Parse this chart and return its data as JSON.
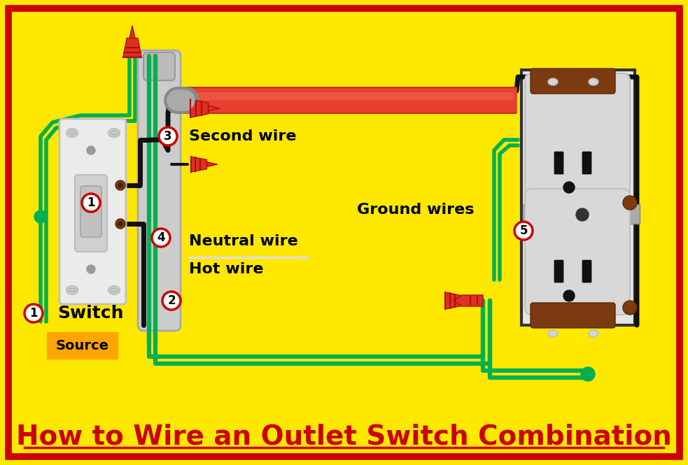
{
  "bg_color": "#FFE800",
  "border_color": "#CC0000",
  "title": "How to Wire an Outlet Switch Combination",
  "title_color": "#CC0000",
  "title_fontsize": 28,
  "wire_green": "#00B050",
  "wire_black": "#111111",
  "wire_gray": "#999999",
  "wire_red_tube": "#E84030",
  "switch_plate_color": "#E8E8E8",
  "outlet_plate_color": "#E8E8E8",
  "brown_screw": "#7B3A10",
  "label_bg": "#FFA500",
  "circle_bg": "#FFFFFF",
  "circle_border": "#CC0000",
  "labels": {
    "second_wire": "Second wire",
    "ground_wires": "Ground wires",
    "neutral_wire": "Neutral wire",
    "hot_wire": "Hot wire",
    "switch_label": "Switch",
    "source": "Source"
  }
}
